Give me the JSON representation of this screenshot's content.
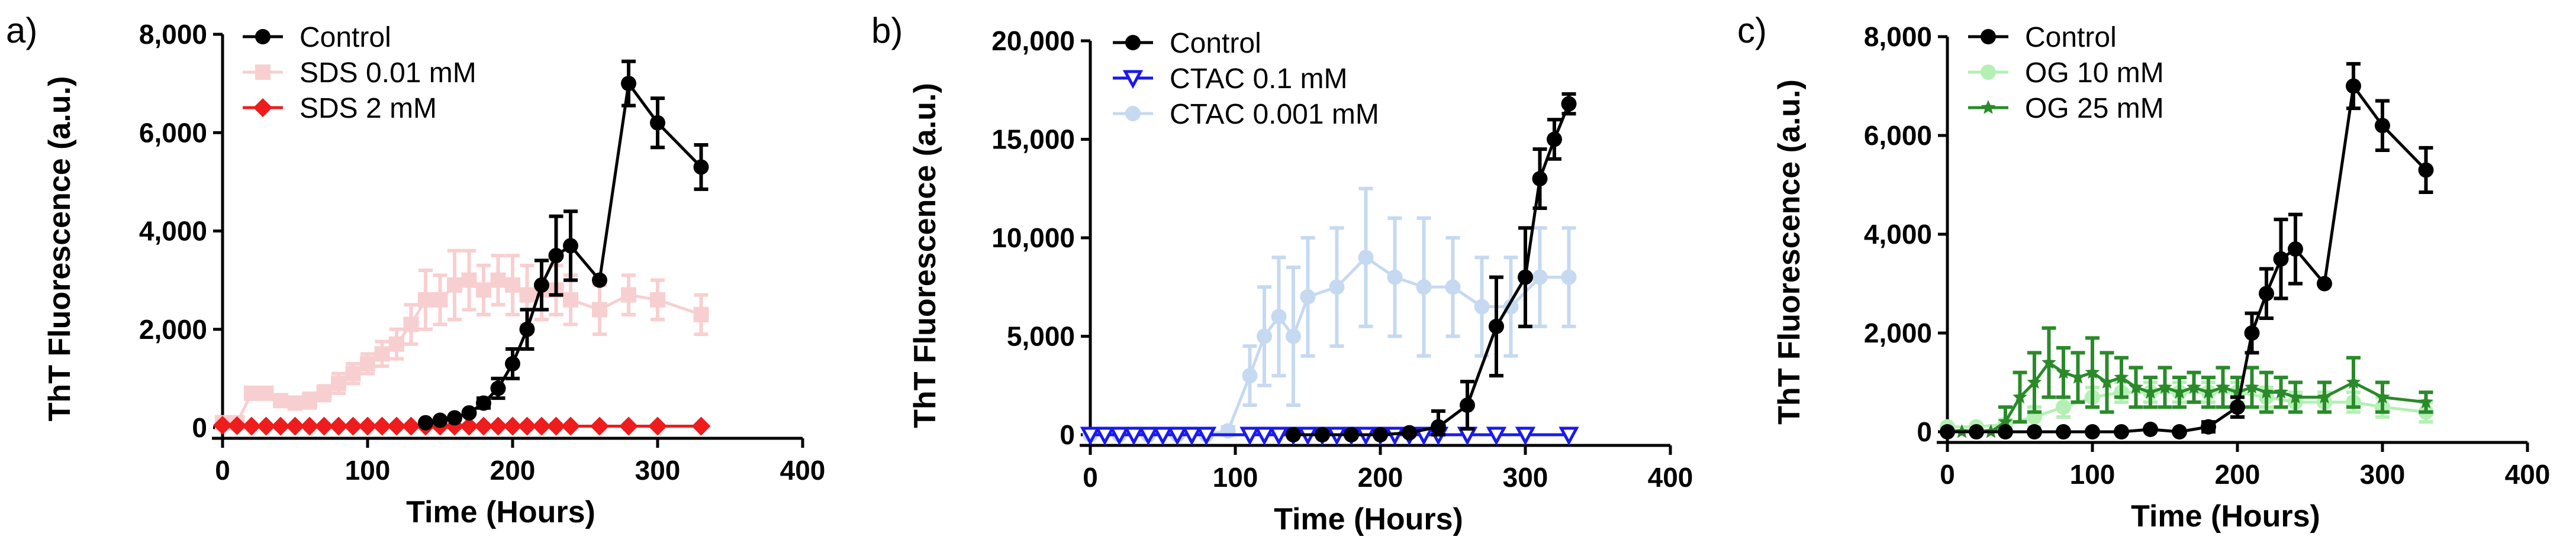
{
  "chart_data": [
    {
      "type": "line",
      "panel_label": "a)",
      "xlabel": "Time (Hours)",
      "ylabel": "ThT Fluorescence (a.u.)",
      "xlim": [
        0,
        400
      ],
      "ylim": [
        0,
        8000
      ],
      "xticks": [
        0,
        100,
        200,
        300,
        400
      ],
      "xtick_labels": [
        "0",
        "100",
        "200",
        "300",
        "400"
      ],
      "yticks": [
        0,
        2000,
        4000,
        6000,
        8000
      ],
      "ytick_labels": [
        "0",
        "2,000",
        "4,000",
        "6,000",
        "8,000"
      ],
      "legend_position": "top-left",
      "series": [
        {
          "name": "SDS 0.01 mM",
          "color": "#f8cfd0",
          "marker": "square",
          "x": [
            0,
            10,
            20,
            30,
            40,
            50,
            60,
            70,
            80,
            90,
            100,
            110,
            120,
            130,
            140,
            150,
            160,
            170,
            180,
            190,
            200,
            210,
            220,
            230,
            240,
            260,
            280,
            300,
            330
          ],
          "y": [
            100,
            100,
            700,
            700,
            550,
            500,
            550,
            700,
            900,
            1100,
            1300,
            1500,
            1700,
            2100,
            2600,
            2600,
            2900,
            3000,
            2800,
            3000,
            2900,
            2700,
            2800,
            2800,
            2600,
            2400,
            2700,
            2600,
            2300
          ],
          "err": [
            0,
            0,
            80,
            80,
            80,
            80,
            150,
            150,
            200,
            200,
            200,
            250,
            300,
            400,
            600,
            500,
            700,
            600,
            500,
            500,
            600,
            600,
            600,
            500,
            500,
            500,
            400,
            400,
            400
          ]
        },
        {
          "name": "SDS 2 mM",
          "color": "#ee1c1c",
          "marker": "diamond",
          "x": [
            0,
            10,
            20,
            30,
            40,
            50,
            60,
            70,
            80,
            90,
            100,
            110,
            120,
            130,
            140,
            150,
            160,
            170,
            180,
            190,
            200,
            210,
            220,
            230,
            240,
            260,
            280,
            300,
            330
          ],
          "y": [
            50,
            40,
            30,
            30,
            30,
            30,
            30,
            30,
            30,
            30,
            30,
            30,
            30,
            30,
            30,
            30,
            30,
            30,
            30,
            30,
            30,
            30,
            30,
            30,
            30,
            30,
            30,
            30,
            30
          ],
          "err": [
            0,
            0,
            0,
            0,
            0,
            0,
            0,
            0,
            0,
            0,
            0,
            0,
            0,
            0,
            0,
            0,
            0,
            0,
            0,
            0,
            0,
            0,
            0,
            0,
            0,
            0,
            0,
            0,
            0
          ]
        },
        {
          "name": "Control",
          "color": "#000000",
          "marker": "circle",
          "x": [
            140,
            150,
            160,
            170,
            180,
            190,
            200,
            210,
            220,
            230,
            240,
            260,
            280,
            300,
            330
          ],
          "y": [
            100,
            150,
            200,
            300,
            500,
            800,
            1300,
            2000,
            2900,
            3500,
            3700,
            3000,
            7000,
            6200,
            5300
          ],
          "err": [
            0,
            0,
            0,
            0,
            100,
            200,
            300,
            400,
            500,
            800,
            700,
            0,
            450,
            500,
            450
          ]
        }
      ],
      "legend": [
        "Control",
        "SDS 0.01 mM",
        "SDS 2 mM"
      ]
    },
    {
      "type": "line",
      "panel_label": "b)",
      "xlabel": "Time (Hours)",
      "ylabel": "ThT Fluorescence (a.u.)",
      "xlim": [
        0,
        400
      ],
      "ylim": [
        0,
        20000
      ],
      "xticks": [
        0,
        100,
        200,
        300,
        400
      ],
      "xtick_labels": [
        "0",
        "100",
        "200",
        "300",
        "400"
      ],
      "yticks": [
        0,
        5000,
        10000,
        15000,
        20000
      ],
      "ytick_labels": [
        "0",
        "5,000",
        "10,000",
        "15,000",
        "20,000"
      ],
      "legend_position": "top-left",
      "series": [
        {
          "name": "CTAC 0.001 mM",
          "color": "#c5d9f1",
          "marker": "circle",
          "x": [
            0,
            20,
            40,
            60,
            80,
            95,
            110,
            120,
            130,
            140,
            150,
            170,
            190,
            210,
            230,
            250,
            270,
            290,
            310,
            330
          ],
          "y": [
            0,
            0,
            0,
            0,
            0,
            200,
            3000,
            5000,
            6000,
            5000,
            7000,
            7500,
            9000,
            8000,
            7500,
            7500,
            6500,
            6500,
            8000,
            8000
          ],
          "err": [
            0,
            0,
            0,
            0,
            0,
            200,
            1500,
            2500,
            3000,
            3500,
            3000,
            3000,
            3500,
            3000,
            3500,
            2500,
            2500,
            2500,
            2500,
            2500
          ]
        },
        {
          "name": "CTAC 0.1 mM",
          "color": "#1a1aee",
          "marker": "triangle-down",
          "x": [
            0,
            10,
            20,
            30,
            40,
            50,
            60,
            70,
            80,
            110,
            120,
            130,
            140,
            150,
            160,
            170,
            180,
            190,
            200,
            210,
            220,
            230,
            240,
            260,
            280,
            300,
            330
          ],
          "y": [
            0,
            0,
            0,
            0,
            0,
            0,
            0,
            0,
            0,
            0,
            0,
            0,
            0,
            0,
            0,
            0,
            0,
            0,
            0,
            0,
            0,
            0,
            0,
            0,
            0,
            0,
            0
          ],
          "err": [
            0,
            0,
            0,
            0,
            0,
            0,
            0,
            0,
            0,
            0,
            0,
            0,
            0,
            0,
            0,
            0,
            0,
            0,
            0,
            0,
            0,
            0,
            0,
            0,
            0,
            0,
            0
          ]
        },
        {
          "name": "Control",
          "color": "#000000",
          "marker": "circle",
          "x": [
            140,
            160,
            180,
            200,
            220,
            240,
            260,
            280,
            300,
            310,
            320,
            330
          ],
          "y": [
            0,
            0,
            0,
            0,
            100,
            400,
            1500,
            5500,
            8000,
            13000,
            15000,
            16800
          ],
          "err": [
            0,
            0,
            0,
            0,
            0,
            800,
            1200,
            2500,
            2500,
            1500,
            1000,
            500
          ]
        }
      ],
      "legend": [
        "Control",
        "CTAC 0.1 mM",
        "CTAC 0.001 mM"
      ]
    },
    {
      "type": "line",
      "panel_label": "c)",
      "xlabel": "Time (Hours)",
      "ylabel": "ThT Fluorescence (a.u.)",
      "xlim": [
        0,
        400
      ],
      "ylim": [
        0,
        8000
      ],
      "xticks": [
        0,
        100,
        200,
        300,
        400
      ],
      "xtick_labels": [
        "0",
        "100",
        "200",
        "300",
        "400"
      ],
      "yticks": [
        0,
        2000,
        4000,
        6000,
        8000
      ],
      "ytick_labels": [
        "0",
        "2,000",
        "4,000",
        "6,000",
        "8,000"
      ],
      "legend_position": "top-left",
      "series": [
        {
          "name": "OG 10 mM",
          "color": "#b4f0b4",
          "marker": "circle",
          "x": [
            0,
            20,
            40,
            60,
            80,
            100,
            120,
            140,
            160,
            180,
            200,
            220,
            240,
            260,
            280,
            300,
            330
          ],
          "y": [
            100,
            100,
            150,
            300,
            500,
            700,
            800,
            800,
            800,
            800,
            800,
            700,
            600,
            600,
            600,
            500,
            400
          ],
          "err": [
            0,
            0,
            100,
            200,
            200,
            200,
            200,
            200,
            200,
            200,
            200,
            200,
            200,
            200,
            200,
            200,
            200
          ]
        },
        {
          "name": "OG 25 mM",
          "color": "#2a8a2a",
          "marker": "star",
          "x": [
            0,
            10,
            20,
            30,
            40,
            50,
            60,
            70,
            80,
            90,
            100,
            110,
            120,
            130,
            140,
            150,
            160,
            170,
            180,
            190,
            200,
            210,
            220,
            230,
            240,
            260,
            280,
            300,
            330
          ],
          "y": [
            0,
            0,
            0,
            0,
            200,
            700,
            1000,
            1400,
            1200,
            1100,
            1200,
            1000,
            1100,
            900,
            800,
            900,
            800,
            900,
            800,
            900,
            800,
            900,
            800,
            800,
            700,
            700,
            1000,
            700,
            600
          ],
          "err": [
            0,
            0,
            0,
            0,
            300,
            500,
            600,
            700,
            500,
            500,
            700,
            600,
            400,
            400,
            300,
            400,
            300,
            300,
            300,
            400,
            300,
            400,
            400,
            300,
            300,
            300,
            500,
            300,
            200
          ]
        },
        {
          "name": "Control",
          "color": "#000000",
          "marker": "circle",
          "x": [
            0,
            20,
            40,
            60,
            80,
            100,
            120,
            140,
            160,
            180,
            200,
            210,
            220,
            230,
            240,
            260,
            280,
            300,
            330
          ],
          "y": [
            0,
            0,
            0,
            0,
            0,
            0,
            0,
            50,
            0,
            100,
            500,
            2000,
            2800,
            3500,
            3700,
            3000,
            7000,
            6200,
            5300
          ],
          "err": [
            0,
            0,
            0,
            0,
            0,
            0,
            0,
            0,
            0,
            100,
            200,
            400,
            500,
            800,
            700,
            0,
            450,
            500,
            450
          ]
        }
      ],
      "legend": [
        "Control",
        "OG 10 mM",
        "OG 25 mM"
      ]
    }
  ]
}
